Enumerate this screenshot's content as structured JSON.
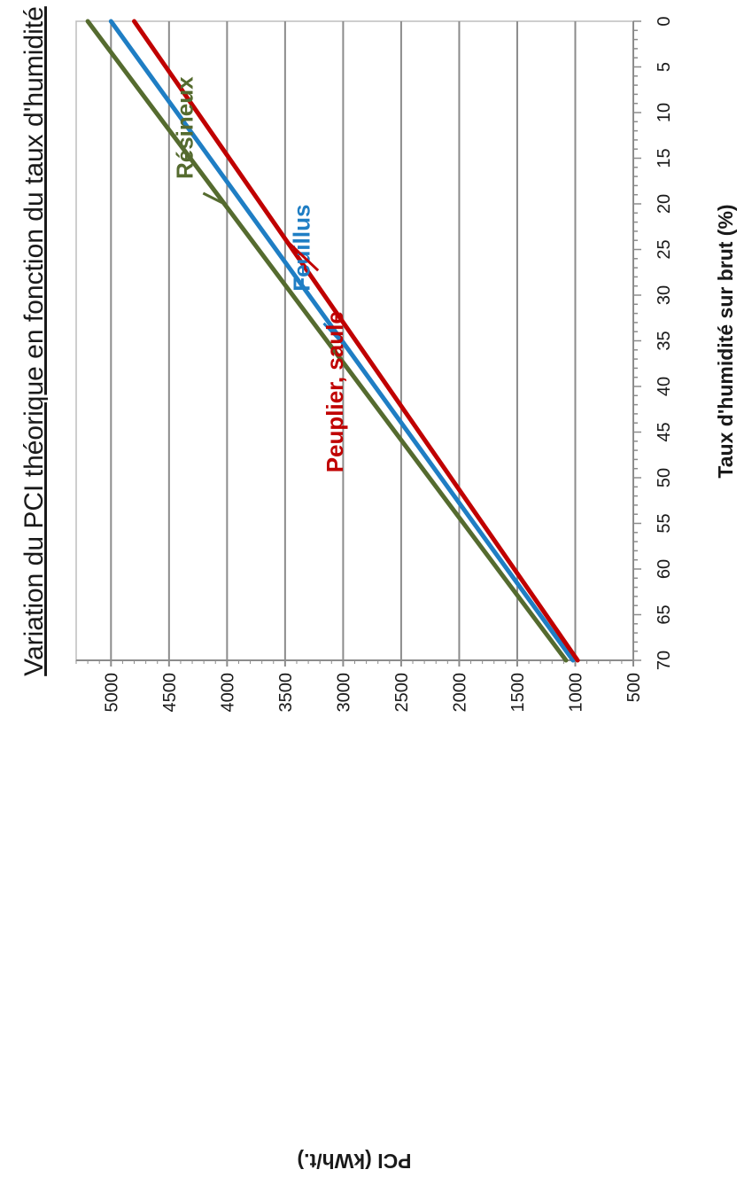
{
  "chart_data": {
    "type": "line",
    "title": "Variation du PCI théorique en fonction du taux d'humidité",
    "xlabel": "Taux d'humidité sur brut (%)",
    "ylabel": "PCI (kWh/t.)",
    "xlim": [
      0,
      70
    ],
    "ylim": [
      500,
      5300
    ],
    "x_ticks": [
      0,
      5,
      10,
      15,
      20,
      25,
      30,
      35,
      40,
      45,
      50,
      55,
      60,
      65,
      70
    ],
    "x_tick_labels": [
      "0",
      "5",
      "10",
      "15",
      "20",
      "25",
      "30",
      "35",
      "40",
      "45",
      "50",
      "55",
      "60",
      "65",
      "70"
    ],
    "y_ticks": [
      500,
      1000,
      1500,
      2000,
      2500,
      3000,
      3500,
      4000,
      4500,
      5000
    ],
    "y_tick_labels": [
      "500",
      "1000",
      "1500",
      "2000",
      "2500",
      "3000",
      "3500",
      "4000",
      "4500",
      "5000"
    ],
    "grid": "horizontal",
    "orientation": "rotated-90-clockwise",
    "series": [
      {
        "name": "Résineux",
        "color": "#556b2f",
        "x": [
          0,
          70
        ],
        "y": [
          5200,
          1080
        ]
      },
      {
        "name": "Feuillus",
        "color": "#1f7ec4",
        "x": [
          0,
          70
        ],
        "y": [
          5000,
          1020
        ]
      },
      {
        "name": "Peuplier, saule",
        "color": "#c00000",
        "x": [
          0,
          70
        ],
        "y": [
          4800,
          980
        ]
      }
    ],
    "annotations": [
      {
        "text": "Résineux",
        "series": 0,
        "x": 20
      },
      {
        "text": "Feuillus",
        "series": 1,
        "x": 36
      },
      {
        "text": "Peuplier, saule",
        "series": 2,
        "x": 24
      }
    ]
  }
}
